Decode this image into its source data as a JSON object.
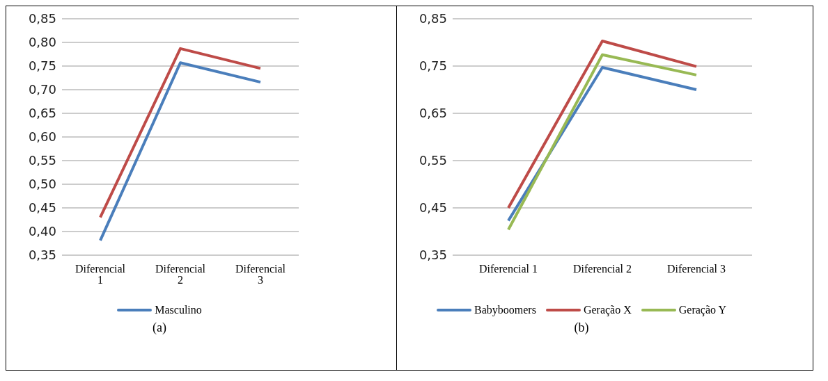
{
  "chart_data": [
    {
      "type": "line",
      "categories": [
        "Diferencial 1",
        "Diferencial 2",
        "Diferencial 3"
      ],
      "series": [
        {
          "name": "Masculino",
          "color": "#4a7ebb",
          "values": [
            0.381,
            0.757,
            0.716
          ]
        },
        {
          "color": "#be4b48",
          "values": [
            0.43,
            0.787,
            0.745
          ]
        }
      ],
      "ylim": [
        0.35,
        0.85
      ],
      "yticks": [
        {
          "value": 0.35,
          "label": "0,35"
        },
        {
          "value": 0.4,
          "label": "0,40"
        },
        {
          "value": 0.45,
          "label": "0,45"
        },
        {
          "value": 0.5,
          "label": "0,50"
        },
        {
          "value": 0.55,
          "label": "0,55"
        },
        {
          "value": 0.6,
          "label": "0,60"
        },
        {
          "value": 0.65,
          "label": "0,65"
        },
        {
          "value": 0.7,
          "label": "0,70"
        },
        {
          "value": 0.75,
          "label": "0,75"
        },
        {
          "value": 0.8,
          "label": "0,80"
        },
        {
          "value": 0.85,
          "label": "0,85"
        }
      ],
      "grid": "y",
      "legend": "bottom",
      "marker": "none",
      "line_style": "solid",
      "annotations": [
        "(a)"
      ]
    },
    {
      "type": "line",
      "categories": [
        "Diferencial 1",
        "Diferencial 2",
        "Diferencial 3"
      ],
      "series": [
        {
          "name": "Babyboomers",
          "color": "#4a7ebb",
          "values": [
            0.423,
            0.747,
            0.7
          ]
        },
        {
          "name": "Geração X",
          "color": "#be4b48",
          "values": [
            0.45,
            0.803,
            0.749
          ]
        },
        {
          "name": "Geração Y",
          "color": "#98b954",
          "values": [
            0.404,
            0.774,
            0.731
          ]
        }
      ],
      "ylim": [
        0.35,
        0.85
      ],
      "yticks": [
        {
          "value": 0.35,
          "label": "0,35"
        },
        {
          "value": 0.45,
          "label": "0,45"
        },
        {
          "value": 0.55,
          "label": "0,55"
        },
        {
          "value": 0.65,
          "label": "0,65"
        },
        {
          "value": 0.75,
          "label": "0,75"
        },
        {
          "value": 0.85,
          "label": "0,85"
        }
      ],
      "grid": "y",
      "legend": "bottom",
      "marker": "none",
      "line_style": "solid",
      "annotations": [
        "(b)"
      ]
    }
  ]
}
